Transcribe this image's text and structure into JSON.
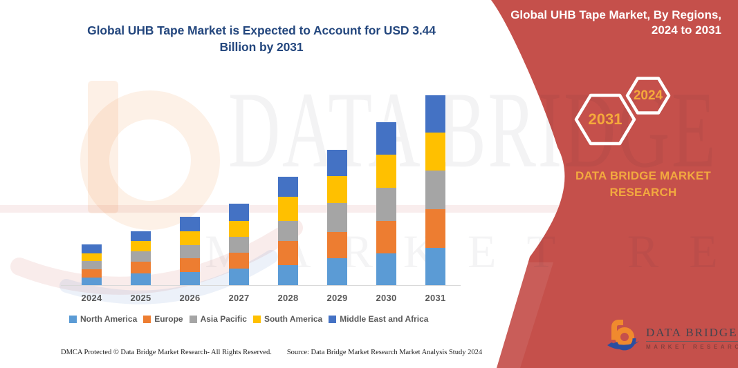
{
  "title": "Global UHB Tape Market is Expected to Account for USD 3.44 Billion by 2031",
  "banner": {
    "heading": "Global UHB Tape Market, By Regions, 2024 to 2031",
    "hexagons": [
      "2031",
      "2024"
    ],
    "brand_text": "DATA BRIDGE MARKET RESEARCH",
    "background_color": "#C5504B",
    "hexagon_text_color": "#F5A93B",
    "heading_text_color": "#FFFFFF"
  },
  "watermark": {
    "line1": "DATA BRIDGE",
    "line2": "MARKET RESEARCH"
  },
  "logo": {
    "name_line": "DATA BRIDGE",
    "tagline": "MARKET RESEARCH"
  },
  "footer": {
    "dmca": "DMCA Protected © Data Bridge Market Research-  All Rights Reserved.",
    "source": "Source: Data Bridge Market Research  Market Analysis Study 2024"
  },
  "chart_data": {
    "type": "bar",
    "stacked": true,
    "title": "Global UHB Tape Market is Expected to Account for USD 3.44 Billion by 2031",
    "unit": "USD billion",
    "categories": [
      "2024",
      "2025",
      "2026",
      "2027",
      "2028",
      "2029",
      "2030",
      "2031"
    ],
    "series": [
      {
        "name": "North America",
        "color": "#5B9BD5",
        "values": [
          0.15,
          0.22,
          0.25,
          0.31,
          0.37,
          0.5,
          0.59,
          0.69
        ]
      },
      {
        "name": "Europe",
        "color": "#ED7D31",
        "values": [
          0.15,
          0.21,
          0.25,
          0.29,
          0.44,
          0.48,
          0.58,
          0.7
        ]
      },
      {
        "name": "Asia Pacific",
        "color": "#A5A5A5",
        "values": [
          0.15,
          0.19,
          0.24,
          0.29,
          0.36,
          0.52,
          0.6,
          0.7
        ]
      },
      {
        "name": "South America",
        "color": "#FFC000",
        "values": [
          0.14,
          0.19,
          0.25,
          0.29,
          0.44,
          0.49,
          0.6,
          0.68
        ]
      },
      {
        "name": "Middle East and Africa",
        "color": "#4472C4",
        "values": [
          0.16,
          0.17,
          0.26,
          0.31,
          0.36,
          0.47,
          0.59,
          0.67
        ]
      }
    ],
    "stack_order_bottom_to_top": [
      "North America",
      "Europe",
      "Asia Pacific",
      "South America",
      "Middle East and Africa"
    ],
    "totals": [
      0.75,
      0.98,
      1.25,
      1.49,
      1.97,
      2.46,
      2.96,
      3.44
    ],
    "ylim": [
      0,
      3.44
    ],
    "y_axis_shown": false,
    "gridlines": false,
    "legend_position": "bottom",
    "xlabel": "",
    "ylabel": ""
  }
}
